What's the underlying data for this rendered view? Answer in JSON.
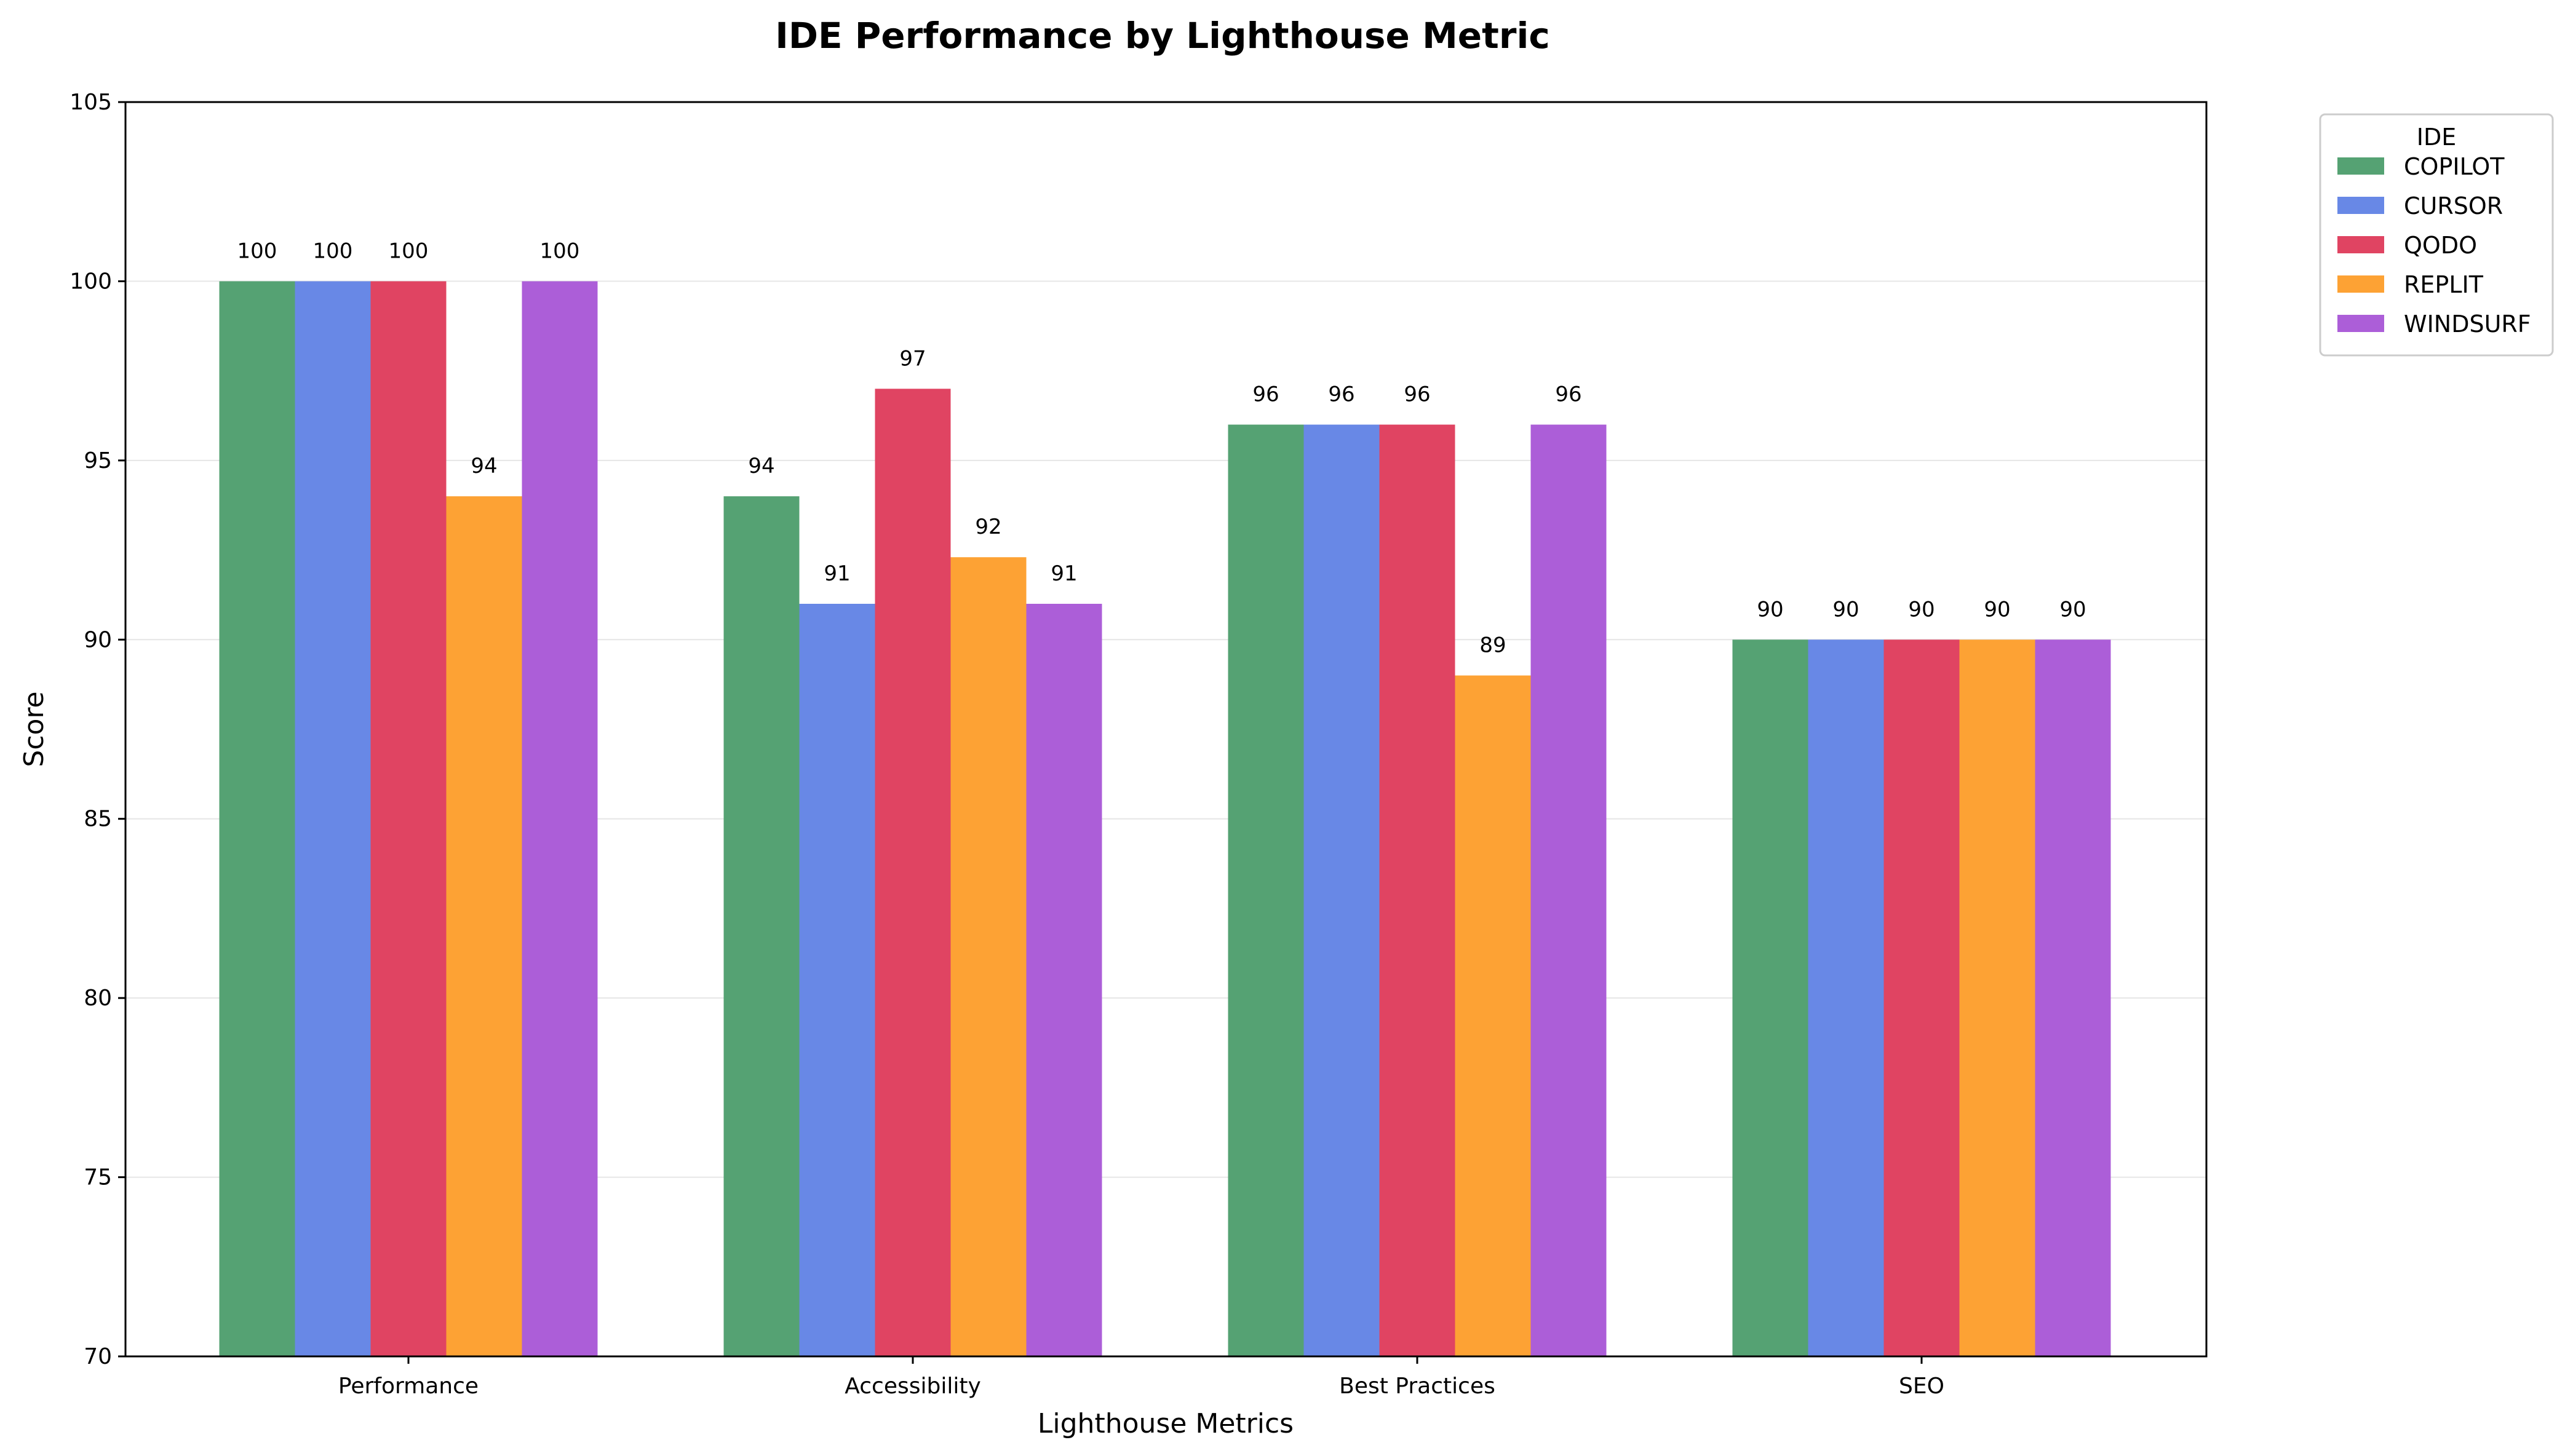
{
  "chart_data": {
    "type": "bar",
    "title": "IDE Performance by Lighthouse Metric",
    "xlabel": "Lighthouse Metrics",
    "ylabel": "Score",
    "ylim": [
      70,
      105
    ],
    "yticks": [
      70,
      75,
      80,
      85,
      90,
      95,
      100,
      105
    ],
    "grid": "horizontal",
    "categories": [
      "Performance",
      "Accessibility",
      "Best Practices",
      "SEO"
    ],
    "legend": {
      "title": "IDE",
      "placement": "outside top-right"
    },
    "series": [
      {
        "name": "COPILOT",
        "color": "#55a273",
        "values": [
          100,
          94,
          96,
          90
        ],
        "labels": [
          "100",
          "94",
          "96",
          "90"
        ]
      },
      {
        "name": "CURSOR",
        "color": "#6888e6",
        "values": [
          100,
          91,
          96,
          90
        ],
        "labels": [
          "100",
          "91",
          "96",
          "90"
        ]
      },
      {
        "name": "QODO",
        "color": "#e04462",
        "values": [
          100,
          97,
          96,
          90
        ],
        "labels": [
          "100",
          "97",
          "96",
          "90"
        ]
      },
      {
        "name": "REPLIT",
        "color": "#fda234",
        "values": [
          94,
          92.3,
          89,
          90
        ],
        "labels": [
          "94",
          "92",
          "89",
          "90"
        ]
      },
      {
        "name": "WINDSURF",
        "color": "#ac5ed8",
        "values": [
          100,
          91,
          96,
          90
        ],
        "labels": [
          "100",
          "91",
          "96",
          "90"
        ]
      }
    ]
  }
}
